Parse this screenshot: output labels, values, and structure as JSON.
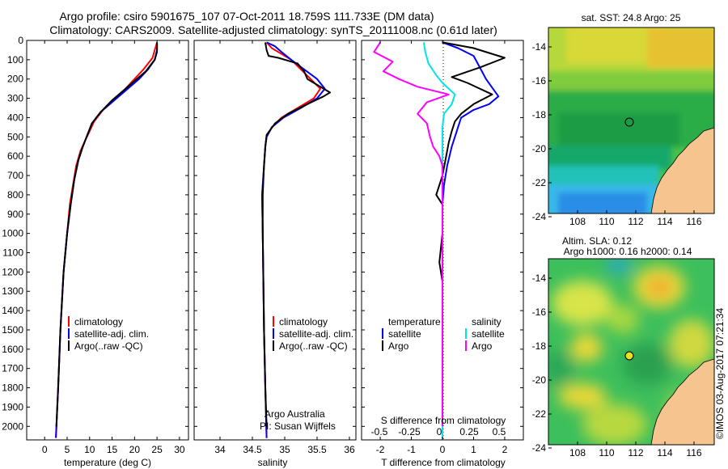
{
  "header": {
    "title_line1": "Argo profile: csiro 5901675_107 07-Oct-2011 18.759S 111.733E (DM data)",
    "title_line2": "Climatology: CARS2009. Satellite-adjusted climatology: synTS_20111008.nc (0.61d later)"
  },
  "colors": {
    "climatology": "#ff0000",
    "satellite": "#0000ff",
    "argo": "#000000",
    "salinity_satellite": "#00e5e5",
    "salinity_argo": "#ff00ff",
    "land": "#f5c48f"
  },
  "depth_axis": {
    "ylim": [
      0,
      2070
    ],
    "ticks": [
      0,
      100,
      200,
      300,
      400,
      500,
      600,
      700,
      800,
      900,
      1000,
      1100,
      1200,
      1300,
      1400,
      1500,
      1600,
      1700,
      1800,
      1900,
      2000
    ]
  },
  "chart_data": [
    {
      "id": "temperature",
      "type": "line",
      "xlabel": "temperature (deg C)",
      "xlim": [
        -4,
        32
      ],
      "xticks": [
        0,
        5,
        10,
        15,
        20,
        25,
        30
      ],
      "legend": [
        "climatology",
        "satellite-adj. clim.",
        "Argo(..raw -QC)"
      ],
      "legend_position": "bottom-right",
      "series": [
        {
          "name": "climatology",
          "color": "#ff0000",
          "points": [
            [
              25,
              10
            ],
            [
              24.5,
              50
            ],
            [
              24,
              90
            ],
            [
              22,
              150
            ],
            [
              20,
              200
            ],
            [
              18,
              250
            ],
            [
              15.5,
              310
            ],
            [
              13,
              360
            ],
            [
              11,
              420
            ],
            [
              10,
              470
            ],
            [
              9,
              520
            ],
            [
              8,
              570
            ],
            [
              7,
              650
            ],
            [
              6.3,
              750
            ],
            [
              5.6,
              850
            ],
            [
              5,
              1000
            ],
            [
              4.2,
              1200
            ],
            [
              3.5,
              1500
            ],
            [
              3,
              1800
            ],
            [
              2.5,
              2060
            ]
          ]
        },
        {
          "name": "satellite-adj. clim.",
          "color": "#0000ff",
          "points": [
            [
              25,
              10
            ],
            [
              25,
              50
            ],
            [
              24.5,
              100
            ],
            [
              23,
              150
            ],
            [
              21,
              200
            ],
            [
              18.5,
              250
            ],
            [
              15.5,
              310
            ],
            [
              12.5,
              370
            ],
            [
              10.5,
              430
            ],
            [
              9.5,
              490
            ],
            [
              8.5,
              550
            ],
            [
              7.5,
              620
            ],
            [
              6.6,
              720
            ],
            [
              5.8,
              850
            ],
            [
              5,
              1000
            ],
            [
              4.2,
              1200
            ],
            [
              3.5,
              1500
            ],
            [
              3,
              1800
            ],
            [
              2.5,
              2060
            ]
          ]
        },
        {
          "name": "Argo(..raw -QC)",
          "color": "#000000",
          "points": [
            [
              25,
              10
            ],
            [
              25,
              60
            ],
            [
              24.5,
              100
            ],
            [
              22.5,
              160
            ],
            [
              20.5,
              200
            ],
            [
              18,
              250
            ],
            [
              15,
              310
            ],
            [
              12.5,
              370
            ],
            [
              10.5,
              430
            ],
            [
              9.5,
              490
            ],
            [
              8.5,
              550
            ],
            [
              7.5,
              620
            ],
            [
              6.6,
              720
            ],
            [
              5.8,
              850
            ],
            [
              5,
              1000
            ],
            [
              4.2,
              1200
            ],
            [
              3.5,
              1500
            ],
            [
              3,
              1800
            ],
            [
              2.6,
              2000
            ]
          ]
        }
      ]
    },
    {
      "id": "salinity",
      "type": "line",
      "xlabel": "salinity",
      "xlim": [
        33.6,
        36.1
      ],
      "xticks": [
        34,
        34.5,
        35,
        35.5,
        36
      ],
      "legend": [
        "climatology",
        "satellite-adj. clim.",
        "Argo(..raw -QC)"
      ],
      "legend_position": "bottom-right",
      "annotation": [
        "Argo Australia",
        "PI: Susan Wijffels"
      ],
      "series": [
        {
          "name": "climatology",
          "color": "#ff0000",
          "points": [
            [
              34.72,
              10
            ],
            [
              34.8,
              40
            ],
            [
              34.95,
              70
            ],
            [
              35.1,
              100
            ],
            [
              35.25,
              150
            ],
            [
              35.4,
              200
            ],
            [
              35.55,
              250
            ],
            [
              35.45,
              300
            ],
            [
              35.2,
              350
            ],
            [
              34.95,
              400
            ],
            [
              34.8,
              450
            ],
            [
              34.72,
              500
            ],
            [
              34.7,
              550
            ],
            [
              34.68,
              650
            ],
            [
              34.65,
              800
            ],
            [
              34.66,
              1000
            ],
            [
              34.68,
              1500
            ],
            [
              34.7,
              1800
            ],
            [
              34.72,
              2060
            ]
          ]
        },
        {
          "name": "satellite-adj. clim.",
          "color": "#0000ff",
          "points": [
            [
              34.72,
              10
            ],
            [
              34.85,
              30
            ],
            [
              34.95,
              60
            ],
            [
              35.1,
              100
            ],
            [
              35.3,
              150
            ],
            [
              35.5,
              200
            ],
            [
              35.62,
              250
            ],
            [
              35.5,
              300
            ],
            [
              35.25,
              350
            ],
            [
              34.98,
              400
            ],
            [
              34.8,
              450
            ],
            [
              34.72,
              500
            ],
            [
              34.7,
              550
            ],
            [
              34.68,
              650
            ],
            [
              34.65,
              800
            ],
            [
              34.66,
              1000
            ],
            [
              34.68,
              1500
            ],
            [
              34.7,
              1800
            ],
            [
              34.72,
              2060
            ]
          ]
        },
        {
          "name": "Argo(..raw -QC)",
          "color": "#000000",
          "points": [
            [
              34.7,
              10
            ],
            [
              34.72,
              50
            ],
            [
              34.75,
              80
            ],
            [
              34.9,
              90
            ],
            [
              35.2,
              120
            ],
            [
              35.3,
              160
            ],
            [
              35.35,
              200
            ],
            [
              35.5,
              230
            ],
            [
              35.7,
              270
            ],
            [
              35.6,
              290
            ],
            [
              35.35,
              330
            ],
            [
              35.05,
              380
            ],
            [
              34.85,
              430
            ],
            [
              34.72,
              490
            ],
            [
              34.7,
              550
            ],
            [
              34.68,
              650
            ],
            [
              34.66,
              800
            ],
            [
              34.66,
              1000
            ],
            [
              34.68,
              1500
            ],
            [
              34.7,
              1800
            ],
            [
              34.72,
              2000
            ]
          ]
        }
      ]
    },
    {
      "id": "differences",
      "type": "line",
      "xlabel": "T difference from climatology",
      "xlabel_top": "S difference from climatology",
      "xlim": [
        -2.6,
        2.6
      ],
      "xticks": [
        -2,
        -1,
        0,
        1,
        2
      ],
      "xticks_s": [
        -0.5,
        -0.25,
        0,
        0.25,
        0.5
      ],
      "legend_t": [
        "temperature",
        "satellite",
        "Argo"
      ],
      "legend_s": [
        "salinity",
        "satellite",
        "Argo"
      ],
      "series": [
        {
          "name": "T satellite",
          "color": "#0000ff",
          "points": [
            [
              0,
              10
            ],
            [
              0.5,
              40
            ],
            [
              1.0,
              80
            ],
            [
              1.2,
              140
            ],
            [
              1.4,
              200
            ],
            [
              1.8,
              290
            ],
            [
              1.5,
              330
            ],
            [
              1.0,
              360
            ],
            [
              0.6,
              400
            ],
            [
              0.5,
              450
            ],
            [
              0.4,
              500
            ],
            [
              0.3,
              550
            ],
            [
              0.15,
              650
            ],
            [
              0.05,
              750
            ],
            [
              0,
              850
            ],
            [
              0,
              1000
            ],
            [
              0,
              1500
            ],
            [
              0,
              2060
            ]
          ]
        },
        {
          "name": "T Argo",
          "color": "#000000",
          "points": [
            [
              0,
              10
            ],
            [
              1.0,
              40
            ],
            [
              2.0,
              90
            ],
            [
              1.2,
              140
            ],
            [
              0.3,
              190
            ],
            [
              0.8,
              220
            ],
            [
              1.6,
              280
            ],
            [
              1.0,
              330
            ],
            [
              0.6,
              380
            ],
            [
              0.4,
              420
            ],
            [
              0.3,
              470
            ],
            [
              0.2,
              530
            ],
            [
              0.12,
              600
            ],
            [
              0,
              700
            ],
            [
              -0.2,
              800
            ],
            [
              0,
              850
            ],
            [
              0,
              1000
            ],
            [
              -0.1,
              1150
            ],
            [
              0,
              1250
            ],
            [
              0,
              1500
            ],
            [
              0,
              2000
            ]
          ]
        },
        {
          "name": "S satellite",
          "color": "#00e5e5",
          "points": [
            [
              -0.6,
              10
            ],
            [
              -0.55,
              60
            ],
            [
              -0.45,
              120
            ],
            [
              -0.2,
              180
            ],
            [
              0,
              220
            ],
            [
              0.4,
              280
            ],
            [
              0.3,
              330
            ],
            [
              0.05,
              380
            ],
            [
              0,
              450
            ],
            [
              0,
              600
            ],
            [
              0,
              800
            ],
            [
              0,
              1000
            ],
            [
              0,
              1500
            ],
            [
              0,
              2060
            ]
          ]
        },
        {
          "name": "S Argo",
          "color": "#ff00ff",
          "points": [
            [
              -2.0,
              10
            ],
            [
              -2.2,
              60
            ],
            [
              -1.6,
              110
            ],
            [
              -1.9,
              160
            ],
            [
              -1.4,
              200
            ],
            [
              -0.8,
              240
            ],
            [
              0.2,
              280
            ],
            [
              -0.5,
              320
            ],
            [
              -0.8,
              380
            ],
            [
              -0.5,
              430
            ],
            [
              -0.4,
              500
            ],
            [
              -0.3,
              550
            ],
            [
              -0.1,
              600
            ],
            [
              0,
              650
            ],
            [
              0,
              800
            ],
            [
              0,
              1000
            ],
            [
              0,
              1500
            ],
            [
              0,
              2000
            ]
          ]
        }
      ]
    }
  ],
  "map_top": {
    "title": "sat. SST: 24.8 Argo: 25",
    "xticks": [
      "108",
      "110",
      "112",
      "114",
      "116"
    ],
    "yticks": [
      "-14",
      "-16",
      "-18",
      "-20",
      "-22",
      "-24"
    ]
  },
  "map_bottom": {
    "title_line1": "Altim. SLA: 0.12",
    "title_line2": "Argo h1000: 0.16 h2000: 0.14",
    "xticks": [
      "108",
      "110",
      "112",
      "114",
      "116"
    ],
    "yticks": [
      "-14",
      "-16",
      "-18",
      "-20",
      "-22",
      "-24"
    ]
  },
  "credit": "©IMOS 03-Aug-2017 07:21:34"
}
